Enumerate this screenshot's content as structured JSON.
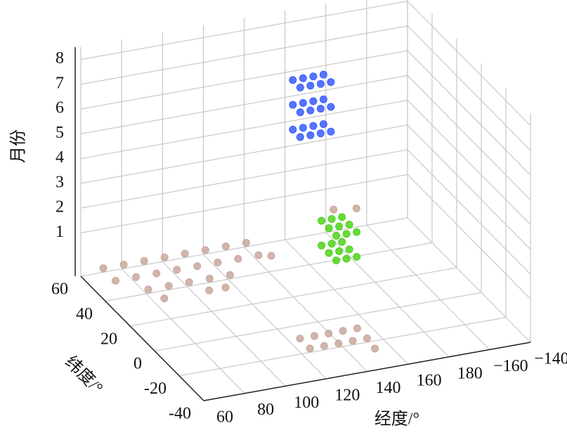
{
  "chart_data": {
    "type": "scatter3d",
    "xlabel": "经度/°",
    "ylabel": "纬度/°",
    "zlabel": "月份",
    "xlim": [
      60,
      220
    ],
    "ylim": [
      -40,
      60
    ],
    "zlim": [
      -0.75,
      8.5
    ],
    "xticks": [
      60,
      80,
      100,
      120,
      140,
      160,
      180,
      {
        "value": 200,
        "label": "−160"
      },
      {
        "value": 220,
        "label": "−140"
      }
    ],
    "yticks": [
      60,
      40,
      20,
      0,
      -20,
      -40
    ],
    "zticks": [
      1,
      2,
      3,
      4,
      5,
      6,
      7,
      8
    ],
    "grid": true,
    "series": [
      {
        "color": "#c9a79c",
        "x": [
          65,
          75,
          85,
          95,
          105,
          115,
          125,
          135,
          65,
          75,
          85,
          95,
          105,
          115,
          125,
          135,
          75,
          85,
          95,
          105,
          115,
          78,
          100,
          108,
          140,
          185,
          195,
          118,
          125,
          132,
          139,
          146,
          118,
          125,
          132,
          139,
          146,
          145
        ],
        "y": [
          50,
          50,
          50,
          50,
          50,
          50,
          50,
          50,
          40,
          40,
          40,
          40,
          40,
          40,
          40,
          40,
          30,
          30,
          30,
          30,
          30,
          22,
          22,
          22,
          38,
          62,
          60,
          -22,
          -22,
          -22,
          -22,
          -22,
          -30,
          -30,
          -30,
          -30,
          -30,
          -38
        ],
        "z": [
          0,
          0,
          0,
          0,
          0,
          0,
          0,
          0,
          0,
          0,
          0,
          0,
          0,
          0,
          0,
          0,
          0,
          0,
          0,
          0,
          0,
          0,
          0,
          0,
          0,
          0,
          0,
          0,
          0,
          0,
          0,
          0,
          0,
          0,
          0,
          0,
          0,
          0
        ]
      },
      {
        "color": "#3a5cff",
        "x": [
          150,
          155,
          160,
          165,
          150,
          155,
          160,
          165,
          150,
          155,
          160,
          165,
          150,
          155,
          160,
          165,
          150,
          155,
          160,
          165,
          150,
          155,
          160,
          165
        ],
        "y": [
          31,
          31,
          31,
          31,
          37,
          37,
          37,
          37,
          31,
          31,
          31,
          31,
          37,
          37,
          37,
          37,
          31,
          31,
          31,
          31,
          37,
          37,
          37,
          37
        ],
        "z": [
          5,
          5,
          5,
          5,
          5,
          5,
          5,
          5,
          6,
          6,
          6,
          6,
          6,
          6,
          6,
          6,
          7,
          7,
          7,
          7,
          7,
          7,
          7,
          7
        ]
      },
      {
        "color": "#4fd21a",
        "x": [
          155,
          160,
          165,
          155,
          160,
          165,
          155,
          160,
          165,
          155,
          160,
          165,
          155,
          160,
          165,
          155,
          160,
          165
        ],
        "y": [
          10,
          10,
          10,
          16,
          16,
          16,
          22,
          22,
          22,
          10,
          10,
          10,
          16,
          16,
          16,
          22,
          22,
          22
        ],
        "z": [
          1,
          1,
          1,
          1,
          1,
          1,
          1,
          1,
          1,
          2,
          2,
          2,
          2,
          2,
          2,
          2,
          2,
          2
        ]
      }
    ]
  }
}
